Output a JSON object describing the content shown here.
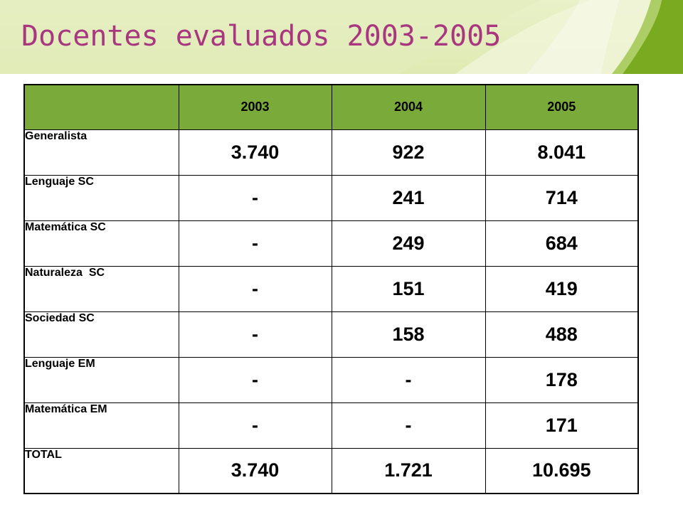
{
  "title": "Docentes evaluados 2003-2005",
  "colors": {
    "header_band": "#dfeab2",
    "title": "#a8377f",
    "table_header": "#7aaa3a"
  },
  "table": {
    "headers": [
      "",
      "2003",
      "2004",
      "2005"
    ],
    "rows": [
      {
        "label": "Generalista",
        "values": [
          "3.740",
          "922",
          "8.041"
        ]
      },
      {
        "label": "Lenguaje SC",
        "values": [
          "-",
          "241",
          "714"
        ]
      },
      {
        "label": "Matemática SC",
        "values": [
          "-",
          "249",
          "684"
        ]
      },
      {
        "label": "Naturaleza  SC",
        "values": [
          "-",
          "151",
          "419"
        ]
      },
      {
        "label": "Sociedad SC",
        "values": [
          "-",
          "158",
          "488"
        ]
      },
      {
        "label": "Lenguaje EM",
        "values": [
          "-",
          "-",
          "178"
        ]
      },
      {
        "label": "Matemática EM",
        "values": [
          "-",
          "-",
          "171"
        ]
      },
      {
        "label": "TOTAL",
        "values": [
          "3.740",
          "1.721",
          "10.695"
        ]
      }
    ]
  }
}
